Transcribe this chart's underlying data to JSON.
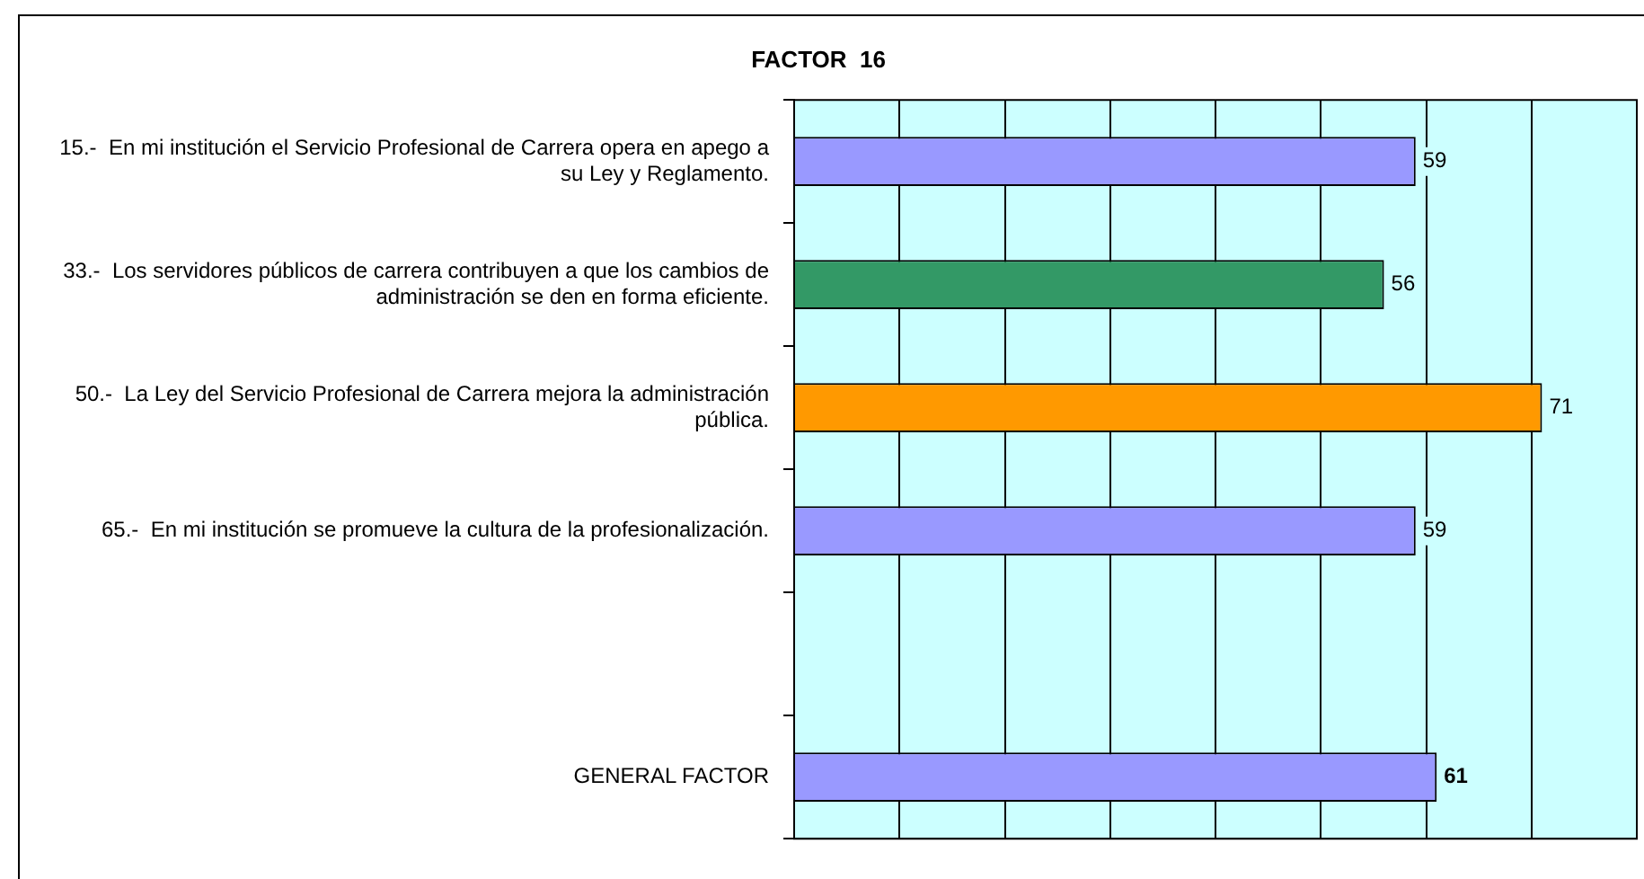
{
  "chart_data": {
    "type": "bar",
    "orientation": "horizontal",
    "title": "FACTOR  16",
    "categories": [
      "15.-  En mi institución el Servicio Profesional de Carrera opera en apego a su Ley y Reglamento.",
      "33.-  Los servidores públicos de carrera contribuyen a que los cambios de administración se den en forma eficiente.",
      "50.-  La Ley del Servicio Profesional de Carrera mejora la administración pública.",
      "65.-  En mi institución se promueve la cultura de la profesionalización.",
      null,
      "GENERAL FACTOR"
    ],
    "values": [
      59,
      56,
      71,
      59,
      null,
      61
    ],
    "colors": [
      "#9999ff",
      "#339966",
      "#ff9900",
      "#9999ff",
      "#9999ff",
      "#9999ff"
    ],
    "xlim": [
      0,
      80
    ],
    "xticks": [
      {
        "value": 0,
        "label": null
      },
      {
        "value": 10,
        "label": null
      },
      {
        "value": 20,
        "label": null
      },
      {
        "value": 30,
        "label": null
      },
      {
        "value": 40,
        "label": null
      },
      {
        "value": 50,
        "label": null
      },
      {
        "value": 60,
        "label": null
      },
      {
        "value": 70,
        "label": null
      },
      {
        "value": 80,
        "label": null
      }
    ],
    "tick_labels": "y",
    "grid": "x",
    "data_labels": true,
    "legend": false
  }
}
